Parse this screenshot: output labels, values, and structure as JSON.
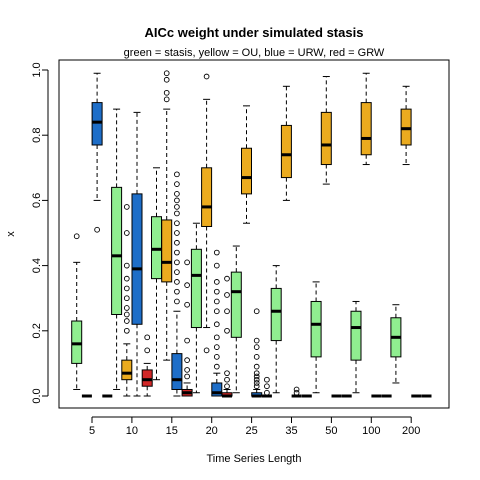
{
  "chart_data": {
    "type": "boxplot",
    "title": "AICc weight under simulated stasis",
    "subtitle": "green = stasis, yellow = OU, blue = URW, red = GRW",
    "xlabel": "Time Series Length",
    "ylabel": "x",
    "ylim": [
      0,
      1
    ],
    "yticks": [
      0.0,
      0.2,
      0.4,
      0.6,
      0.8,
      1.0
    ],
    "ytick_labels": [
      "0.0",
      "0.2",
      "0.4",
      "0.6",
      "0.8",
      "1.0"
    ],
    "categories": [
      "5",
      "10",
      "15",
      "20",
      "25",
      "35",
      "50",
      "100",
      "200"
    ],
    "colors": {
      "stasis": "#90ee90",
      "OU": "#ebab1f",
      "URW": "#1e6ec8",
      "GRW": "#d22828"
    },
    "series_order": [
      "stasis",
      "OU",
      "URW",
      "GRW"
    ],
    "boxes": [
      {
        "category": "5",
        "model": "stasis",
        "whisker_low": 0.02,
        "q1": 0.1,
        "median": 0.16,
        "q3": 0.23,
        "whisker_high": 0.41,
        "outliers": [
          0.49
        ]
      },
      {
        "category": "5",
        "model": "OU",
        "whisker_low": 0.0,
        "q1": 0.0,
        "median": 0.0,
        "q3": 0.0,
        "whisker_high": 0.0,
        "outliers": []
      },
      {
        "category": "5",
        "model": "URW",
        "whisker_low": 0.6,
        "q1": 0.77,
        "median": 0.84,
        "q3": 0.9,
        "whisker_high": 0.99,
        "outliers": [
          0.51
        ]
      },
      {
        "category": "5",
        "model": "GRW",
        "whisker_low": 0.0,
        "q1": 0.0,
        "median": 0.0,
        "q3": 0.0,
        "whisker_high": 0.0,
        "outliers": []
      },
      {
        "category": "10",
        "model": "stasis",
        "whisker_low": 0.02,
        "q1": 0.25,
        "median": 0.43,
        "q3": 0.64,
        "whisker_high": 0.88,
        "outliers": []
      },
      {
        "category": "10",
        "model": "OU",
        "whisker_low": 0.0,
        "q1": 0.05,
        "median": 0.07,
        "q3": 0.11,
        "whisker_high": 0.16,
        "outliers": [
          0.2,
          0.23,
          0.25,
          0.27,
          0.3,
          0.33,
          0.36,
          0.4,
          0.5,
          0.58
        ]
      },
      {
        "category": "10",
        "model": "URW",
        "whisker_low": 0.0,
        "q1": 0.22,
        "median": 0.39,
        "q3": 0.62,
        "whisker_high": 0.87,
        "outliers": []
      },
      {
        "category": "10",
        "model": "GRW",
        "whisker_low": 0.0,
        "q1": 0.03,
        "median": 0.05,
        "q3": 0.08,
        "whisker_high": 0.1,
        "outliers": [
          0.14,
          0.18
        ]
      },
      {
        "category": "15",
        "model": "stasis",
        "whisker_low": 0.05,
        "q1": 0.36,
        "median": 0.45,
        "q3": 0.55,
        "whisker_high": 0.7,
        "outliers": []
      },
      {
        "category": "15",
        "model": "OU",
        "whisker_low": 0.11,
        "q1": 0.35,
        "median": 0.41,
        "q3": 0.54,
        "whisker_high": 0.88,
        "outliers": [
          0.91,
          0.93,
          0.97,
          0.99
        ]
      },
      {
        "category": "15",
        "model": "URW",
        "whisker_low": 0.0,
        "q1": 0.02,
        "median": 0.05,
        "q3": 0.13,
        "whisker_high": 0.26,
        "outliers": [
          0.29,
          0.32,
          0.35,
          0.38,
          0.41,
          0.44,
          0.47,
          0.5,
          0.53,
          0.56,
          0.58,
          0.6,
          0.62,
          0.65,
          0.68
        ]
      },
      {
        "category": "15",
        "model": "GRW",
        "whisker_low": 0.0,
        "q1": 0.0,
        "median": 0.01,
        "q3": 0.02,
        "whisker_high": 0.04,
        "outliers": [
          0.06,
          0.08,
          0.11,
          0.17,
          0.28,
          0.34,
          0.41
        ]
      },
      {
        "category": "20",
        "model": "stasis",
        "whisker_low": 0.01,
        "q1": 0.21,
        "median": 0.37,
        "q3": 0.45,
        "whisker_high": 0.53,
        "outliers": []
      },
      {
        "category": "20",
        "model": "OU",
        "whisker_low": 0.21,
        "q1": 0.52,
        "median": 0.58,
        "q3": 0.7,
        "whisker_high": 0.91,
        "outliers": [
          0.98,
          0.14
        ]
      },
      {
        "category": "20",
        "model": "URW",
        "whisker_low": 0.0,
        "q1": 0.0,
        "median": 0.01,
        "q3": 0.04,
        "whisker_high": 0.07,
        "outliers": [
          0.09,
          0.12,
          0.15,
          0.18,
          0.22,
          0.26,
          0.29,
          0.32,
          0.35,
          0.4,
          0.44
        ]
      },
      {
        "category": "20",
        "model": "GRW",
        "whisker_low": 0.0,
        "q1": 0.0,
        "median": 0.0,
        "q3": 0.01,
        "whisker_high": 0.02,
        "outliers": [
          0.03,
          0.05,
          0.07,
          0.2,
          0.26,
          0.31,
          0.36
        ]
      },
      {
        "category": "25",
        "model": "stasis",
        "whisker_low": 0.01,
        "q1": 0.18,
        "median": 0.32,
        "q3": 0.38,
        "whisker_high": 0.46,
        "outliers": []
      },
      {
        "category": "25",
        "model": "OU",
        "whisker_low": 0.53,
        "q1": 0.62,
        "median": 0.67,
        "q3": 0.76,
        "whisker_high": 0.89,
        "outliers": []
      },
      {
        "category": "25",
        "model": "URW",
        "whisker_low": 0.0,
        "q1": 0.0,
        "median": 0.0,
        "q3": 0.01,
        "whisker_high": 0.02,
        "outliers": [
          0.03,
          0.04,
          0.05,
          0.06,
          0.07,
          0.09,
          0.12,
          0.15,
          0.17,
          0.26
        ]
      },
      {
        "category": "25",
        "model": "GRW",
        "whisker_low": 0.0,
        "q1": 0.0,
        "median": 0.0,
        "q3": 0.0,
        "whisker_high": 0.0,
        "outliers": [
          0.01,
          0.03,
          0.05
        ]
      },
      {
        "category": "35",
        "model": "stasis",
        "whisker_low": 0.01,
        "q1": 0.17,
        "median": 0.26,
        "q3": 0.33,
        "whisker_high": 0.4,
        "outliers": []
      },
      {
        "category": "35",
        "model": "OU",
        "whisker_low": 0.6,
        "q1": 0.67,
        "median": 0.74,
        "q3": 0.83,
        "whisker_high": 0.95,
        "outliers": []
      },
      {
        "category": "35",
        "model": "URW",
        "whisker_low": 0.0,
        "q1": 0.0,
        "median": 0.0,
        "q3": 0.0,
        "whisker_high": 0.0,
        "outliers": [
          0.01,
          0.02
        ]
      },
      {
        "category": "35",
        "model": "GRW",
        "whisker_low": 0.0,
        "q1": 0.0,
        "median": 0.0,
        "q3": 0.0,
        "whisker_high": 0.0,
        "outliers": []
      },
      {
        "category": "50",
        "model": "stasis",
        "whisker_low": 0.01,
        "q1": 0.12,
        "median": 0.22,
        "q3": 0.29,
        "whisker_high": 0.35,
        "outliers": []
      },
      {
        "category": "50",
        "model": "OU",
        "whisker_low": 0.65,
        "q1": 0.71,
        "median": 0.77,
        "q3": 0.87,
        "whisker_high": 0.98,
        "outliers": []
      },
      {
        "category": "50",
        "model": "URW",
        "whisker_low": 0.0,
        "q1": 0.0,
        "median": 0.0,
        "q3": 0.0,
        "whisker_high": 0.0,
        "outliers": []
      },
      {
        "category": "50",
        "model": "GRW",
        "whisker_low": 0.0,
        "q1": 0.0,
        "median": 0.0,
        "q3": 0.0,
        "whisker_high": 0.0,
        "outliers": []
      },
      {
        "category": "100",
        "model": "stasis",
        "whisker_low": 0.01,
        "q1": 0.11,
        "median": 0.21,
        "q3": 0.26,
        "whisker_high": 0.29,
        "outliers": []
      },
      {
        "category": "100",
        "model": "OU",
        "whisker_low": 0.71,
        "q1": 0.74,
        "median": 0.79,
        "q3": 0.9,
        "whisker_high": 0.99,
        "outliers": []
      },
      {
        "category": "100",
        "model": "URW",
        "whisker_low": 0.0,
        "q1": 0.0,
        "median": 0.0,
        "q3": 0.0,
        "whisker_high": 0.0,
        "outliers": []
      },
      {
        "category": "100",
        "model": "GRW",
        "whisker_low": 0.0,
        "q1": 0.0,
        "median": 0.0,
        "q3": 0.0,
        "whisker_high": 0.0,
        "outliers": []
      },
      {
        "category": "200",
        "model": "stasis",
        "whisker_low": 0.04,
        "q1": 0.12,
        "median": 0.18,
        "q3": 0.24,
        "whisker_high": 0.28,
        "outliers": []
      },
      {
        "category": "200",
        "model": "OU",
        "whisker_low": 0.71,
        "q1": 0.77,
        "median": 0.82,
        "q3": 0.88,
        "whisker_high": 0.95,
        "outliers": []
      },
      {
        "category": "200",
        "model": "URW",
        "whisker_low": 0.0,
        "q1": 0.0,
        "median": 0.0,
        "q3": 0.0,
        "whisker_high": 0.0,
        "outliers": []
      },
      {
        "category": "200",
        "model": "GRW",
        "whisker_low": 0.0,
        "q1": 0.0,
        "median": 0.0,
        "q3": 0.0,
        "whisker_high": 0.0,
        "outliers": []
      }
    ]
  }
}
